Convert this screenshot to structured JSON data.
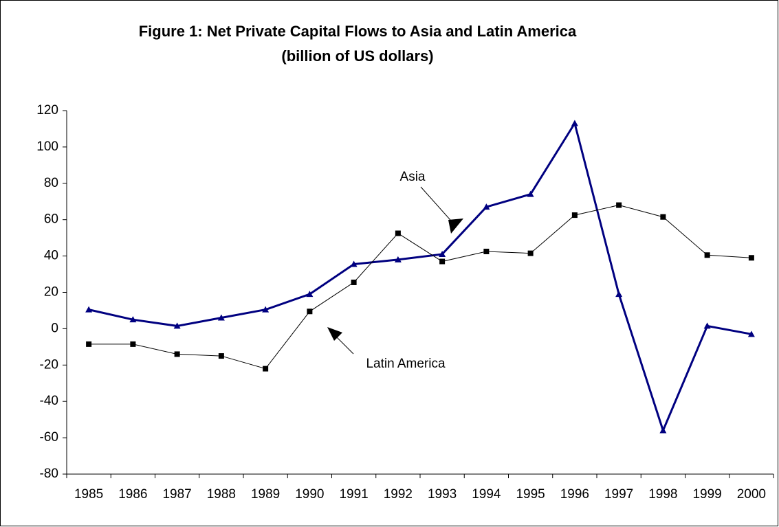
{
  "chart_data": {
    "type": "line",
    "title": "Figure 1: Net Private Capital Flows to Asia and Latin America",
    "subtitle": "(billion of US dollars)",
    "categories": [
      "1985",
      "1986",
      "1987",
      "1988",
      "1989",
      "1990",
      "1991",
      "1992",
      "1993",
      "1994",
      "1995",
      "1996",
      "1997",
      "1998",
      "1999",
      "2000"
    ],
    "series": [
      {
        "name": "Asia",
        "color": "#000080",
        "marker": "triangle",
        "values": [
          10.5,
          5,
          1.5,
          6,
          10.5,
          19,
          35.5,
          38,
          41,
          67,
          74,
          113,
          19,
          -56,
          1.5,
          -3
        ]
      },
      {
        "name": "Latin America",
        "color": "#000000",
        "marker": "square",
        "values": [
          -8.5,
          -8.5,
          -14,
          -15,
          -22,
          9.5,
          25.5,
          52.5,
          37,
          42.5,
          41.5,
          62.5,
          68,
          61.5,
          40.5,
          39
        ]
      }
    ],
    "ylim": [
      -80,
      120
    ],
    "yticks": [
      -80,
      -60,
      -40,
      -20,
      0,
      20,
      40,
      60,
      80,
      100,
      120
    ],
    "grid": false,
    "legend": false
  }
}
